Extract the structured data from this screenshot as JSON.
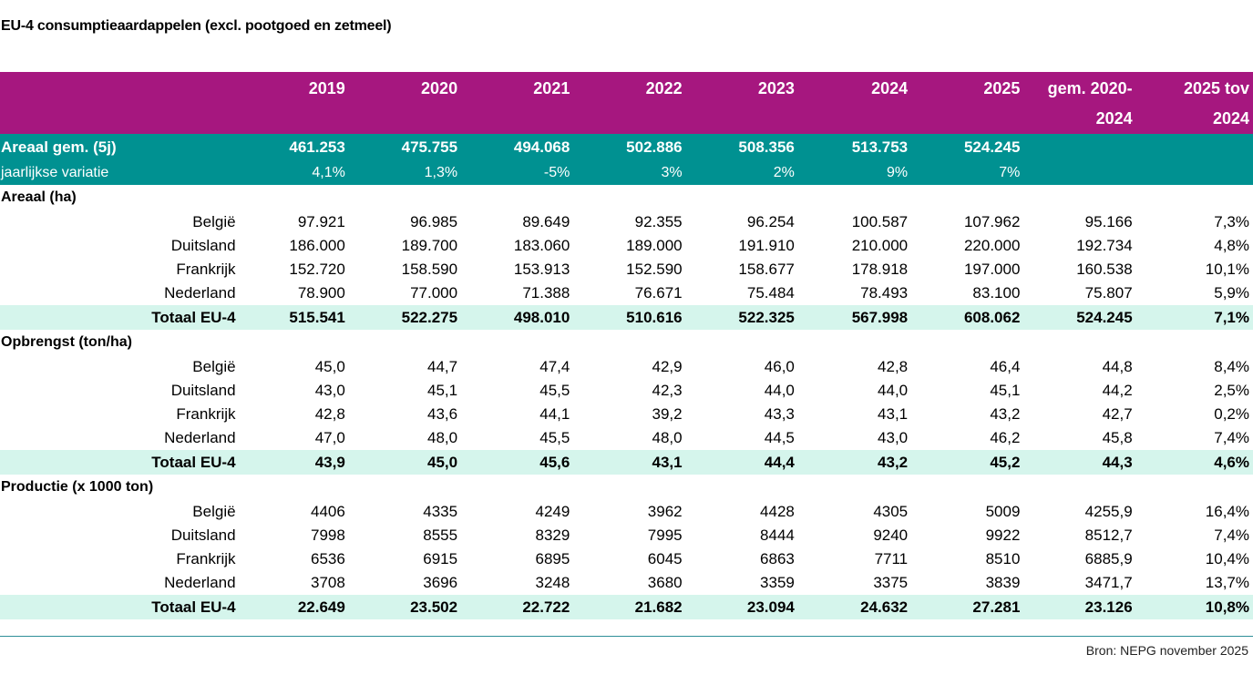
{
  "title": "EU-4 consumptieaardappelen (excl. pootgoed en zetmeel)",
  "colors": {
    "header_bg": "#a6177f",
    "teal_bg": "#009191",
    "total_bg": "#d5f5ec",
    "divider": "#2e8f98"
  },
  "header": {
    "columns": [
      "2019",
      "2020",
      "2021",
      "2022",
      "2023",
      "2024",
      "2025"
    ],
    "avg_label_line1": "gem. 2020-",
    "avg_label_line2": "2024",
    "cmp_label_line1": "2025 tov",
    "cmp_label_line2": "2024"
  },
  "areaal_gem": {
    "label": "Areaal gem. (5j)",
    "values": [
      "461.253",
      "475.755",
      "494.068",
      "502.886",
      "508.356",
      "513.753",
      "524.245"
    ]
  },
  "jaarlijkse_variatie": {
    "label": "jaarlijkse variatie",
    "values": [
      "4,1%",
      "1,3%",
      "-5%",
      "3%",
      "2%",
      "9%",
      "7%"
    ]
  },
  "sections": [
    {
      "title": "Areaal (ha)",
      "rows": [
        {
          "country": "België",
          "values": [
            "97.921",
            "96.985",
            "89.649",
            "92.355",
            "96.254",
            "100.587",
            "107.962",
            "95.166",
            "7,3%"
          ]
        },
        {
          "country": "Duitsland",
          "values": [
            "186.000",
            "189.700",
            "183.060",
            "189.000",
            "191.910",
            "210.000",
            "220.000",
            "192.734",
            "4,8%"
          ]
        },
        {
          "country": "Frankrijk",
          "values": [
            "152.720",
            "158.590",
            "153.913",
            "152.590",
            "158.677",
            "178.918",
            "197.000",
            "160.538",
            "10,1%"
          ]
        },
        {
          "country": "Nederland",
          "values": [
            "78.900",
            "77.000",
            "71.388",
            "76.671",
            "75.484",
            "78.493",
            "83.100",
            "75.807",
            "5,9%"
          ]
        }
      ],
      "total": {
        "label": "Totaal EU-4",
        "values": [
          "515.541",
          "522.275",
          "498.010",
          "510.616",
          "522.325",
          "567.998",
          "608.062",
          "524.245",
          "7,1%"
        ]
      }
    },
    {
      "title": "Opbrengst (ton/ha)",
      "rows": [
        {
          "country": "België",
          "values": [
            "45,0",
            "44,7",
            "47,4",
            "42,9",
            "46,0",
            "42,8",
            "46,4",
            "44,8",
            "8,4%"
          ]
        },
        {
          "country": "Duitsland",
          "values": [
            "43,0",
            "45,1",
            "45,5",
            "42,3",
            "44,0",
            "44,0",
            "45,1",
            "44,2",
            "2,5%"
          ]
        },
        {
          "country": "Frankrijk",
          "values": [
            "42,8",
            "43,6",
            "44,1",
            "39,2",
            "43,3",
            "43,1",
            "43,2",
            "42,7",
            "0,2%"
          ]
        },
        {
          "country": "Nederland",
          "values": [
            "47,0",
            "48,0",
            "45,5",
            "48,0",
            "44,5",
            "43,0",
            "46,2",
            "45,8",
            "7,4%"
          ]
        }
      ],
      "total": {
        "label": "Totaal EU-4",
        "values": [
          "43,9",
          "45,0",
          "45,6",
          "43,1",
          "44,4",
          "43,2",
          "45,2",
          "44,3",
          "4,6%"
        ]
      }
    },
    {
      "title": "Productie (x 1000 ton)",
      "rows": [
        {
          "country": "België",
          "values": [
            "4406",
            "4335",
            "4249",
            "3962",
            "4428",
            "4305",
            "5009",
            "4255,9",
            "16,4%"
          ]
        },
        {
          "country": "Duitsland",
          "values": [
            "7998",
            "8555",
            "8329",
            "7995",
            "8444",
            "9240",
            "9922",
            "8512,7",
            "7,4%"
          ]
        },
        {
          "country": "Frankrijk",
          "values": [
            "6536",
            "6915",
            "6895",
            "6045",
            "6863",
            "7711",
            "8510",
            "6885,9",
            "10,4%"
          ]
        },
        {
          "country": "Nederland",
          "values": [
            "3708",
            "3696",
            "3248",
            "3680",
            "3359",
            "3375",
            "3839",
            "3471,7",
            "13,7%"
          ]
        }
      ],
      "total": {
        "label": "Totaal EU-4",
        "values": [
          "22.649",
          "23.502",
          "22.722",
          "21.682",
          "23.094",
          "24.632",
          "27.281",
          "23.126",
          "10,8%"
        ]
      }
    }
  ],
  "source": "Bron: NEPG november 2025"
}
